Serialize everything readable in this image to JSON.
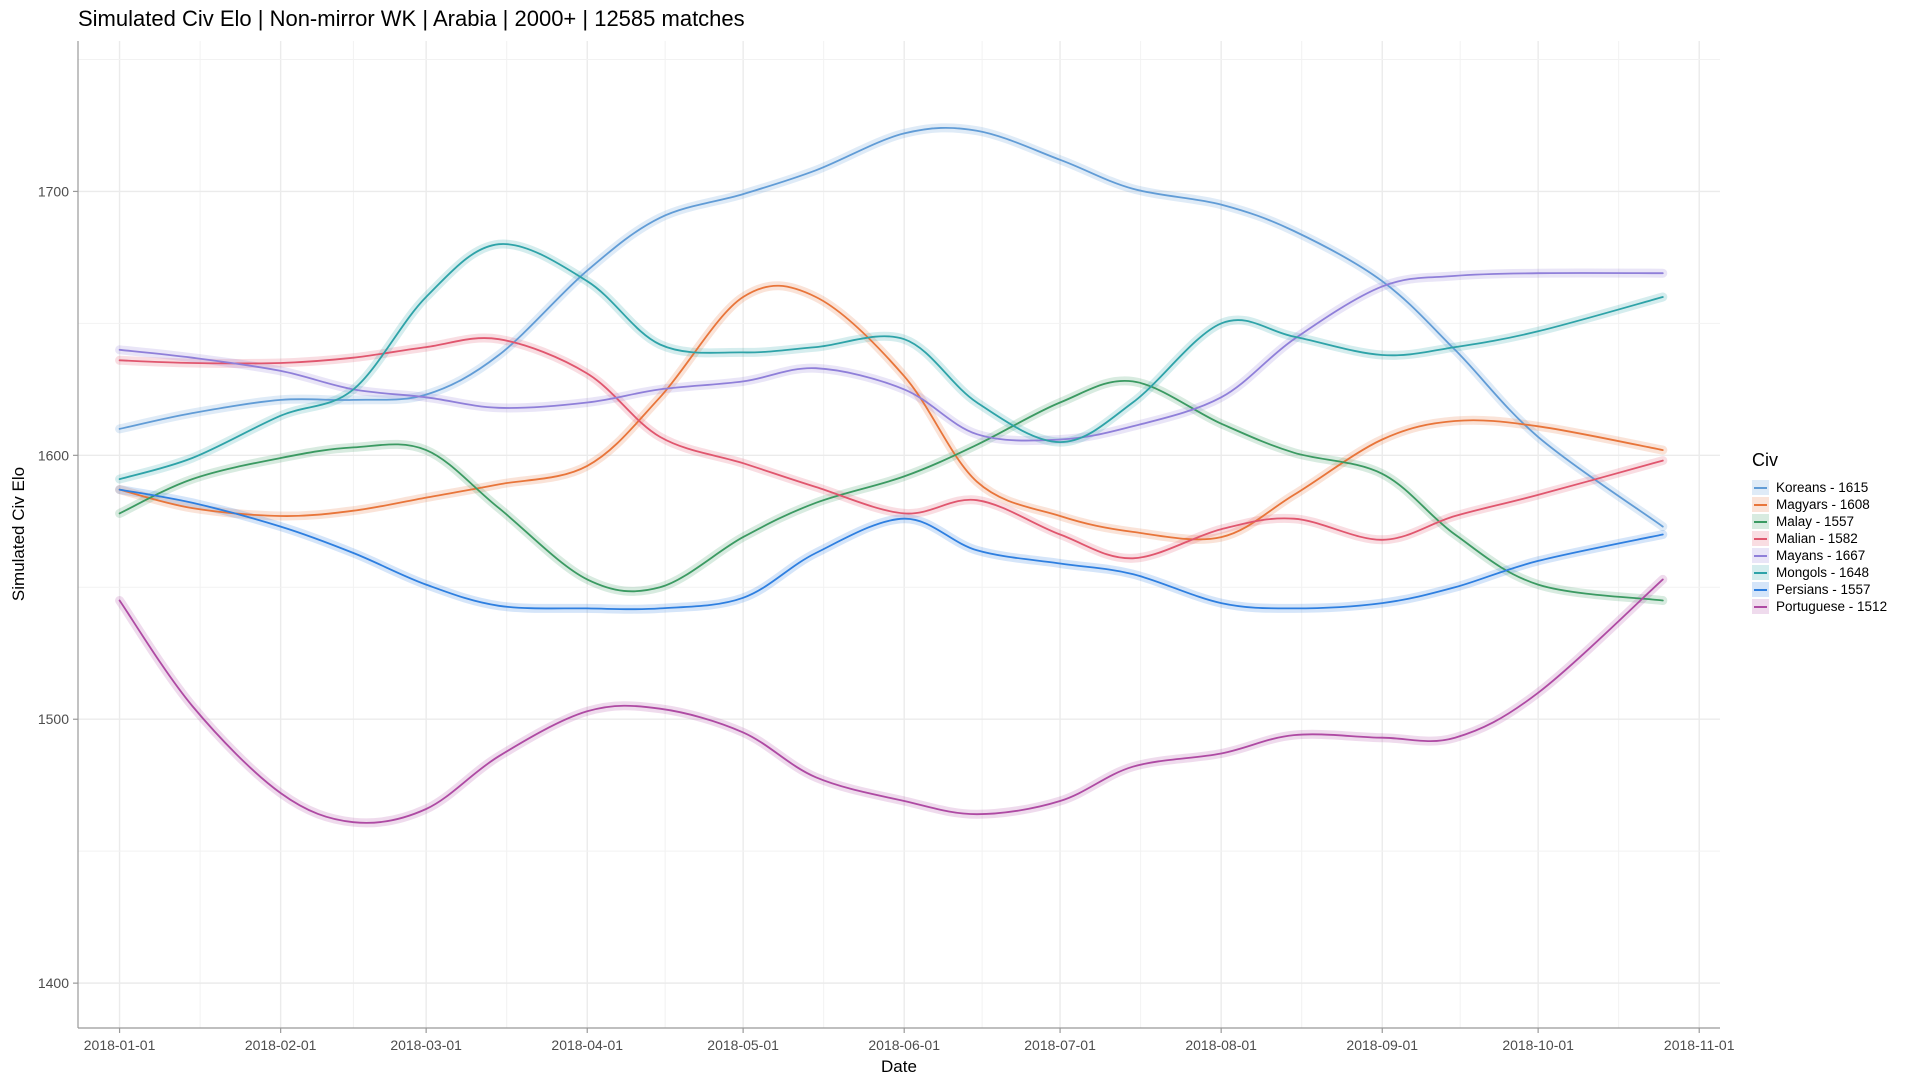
{
  "chart_data": {
    "type": "line",
    "title": "Simulated Civ Elo | Non-mirror WK | Arabia | 2000+ | 12585 matches",
    "xlabel": "Date",
    "ylabel": "Simulated Civ Elo",
    "xlim": [
      "2017-12-24",
      "2018-11-05"
    ],
    "ylim": [
      1383,
      1757
    ],
    "x_ticks": [
      "2018-01-01",
      "2018-02-01",
      "2018-03-01",
      "2018-04-01",
      "2018-05-01",
      "2018-06-01",
      "2018-07-01",
      "2018-08-01",
      "2018-09-01",
      "2018-10-01",
      "2018-11-01"
    ],
    "y_ticks": [
      1400,
      1500,
      1600,
      1700
    ],
    "grid": true,
    "legend_title": "Civ",
    "legend_position": "right",
    "x": [
      "2018-01-01",
      "2018-01-15",
      "2018-02-01",
      "2018-02-15",
      "2018-03-01",
      "2018-03-15",
      "2018-04-01",
      "2018-04-15",
      "2018-05-01",
      "2018-05-15",
      "2018-06-01",
      "2018-06-15",
      "2018-07-01",
      "2018-07-15",
      "2018-08-01",
      "2018-08-15",
      "2018-09-01",
      "2018-09-15",
      "2018-10-01",
      "2018-10-25"
    ],
    "series": [
      {
        "name": "Koreans - 1615",
        "color": "#619CD6",
        "values": [
          1610,
          1616,
          1621,
          1621,
          1623,
          1638,
          1670,
          1690,
          1699,
          1708,
          1722,
          1723,
          1712,
          1701,
          1695,
          1685,
          1666,
          1640,
          1607,
          1573
        ]
      },
      {
        "name": "Magyars - 1608",
        "color": "#E8753A",
        "values": [
          1587,
          1580,
          1577,
          1579,
          1584,
          1589,
          1596,
          1622,
          1660,
          1660,
          1630,
          1590,
          1577,
          1571,
          1569,
          1585,
          1606,
          1613,
          1611,
          1602
        ]
      },
      {
        "name": "Malay - 1557",
        "color": "#3B9A62",
        "values": [
          1578,
          1591,
          1599,
          1603,
          1602,
          1580,
          1553,
          1550,
          1569,
          1582,
          1592,
          1604,
          1620,
          1628,
          1612,
          1601,
          1593,
          1570,
          1551,
          1545
        ]
      },
      {
        "name": "Malian - 1582",
        "color": "#E0566E",
        "values": [
          1636,
          1635,
          1635,
          1637,
          1641,
          1644,
          1631,
          1607,
          1597,
          1588,
          1578,
          1583,
          1570,
          1561,
          1572,
          1576,
          1568,
          1577,
          1585,
          1598
        ]
      },
      {
        "name": "Mayans - 1667",
        "color": "#8F7FD9",
        "values": [
          1640,
          1637,
          1632,
          1625,
          1622,
          1618,
          1620,
          1625,
          1628,
          1633,
          1625,
          1608,
          1606,
          1611,
          1622,
          1644,
          1664,
          1668,
          1669,
          1669
        ]
      },
      {
        "name": "Mongols - 1648",
        "color": "#2EA3A8",
        "values": [
          1591,
          1599,
          1615,
          1625,
          1660,
          1680,
          1666,
          1642,
          1639,
          1641,
          1644,
          1620,
          1605,
          1620,
          1650,
          1645,
          1638,
          1641,
          1647,
          1660
        ]
      },
      {
        "name": "Persians - 1557",
        "color": "#2E7FE0",
        "values": [
          1587,
          1582,
          1573,
          1563,
          1551,
          1543,
          1542,
          1542,
          1546,
          1563,
          1576,
          1564,
          1559,
          1555,
          1544,
          1542,
          1544,
          1550,
          1560,
          1570
        ]
      },
      {
        "name": "Portuguese - 1512",
        "color": "#AE4AA3",
        "values": [
          1545,
          1505,
          1472,
          1461,
          1466,
          1486,
          1503,
          1504,
          1495,
          1478,
          1469,
          1464,
          1469,
          1482,
          1487,
          1494,
          1493,
          1493,
          1510,
          1553
        ]
      }
    ]
  }
}
